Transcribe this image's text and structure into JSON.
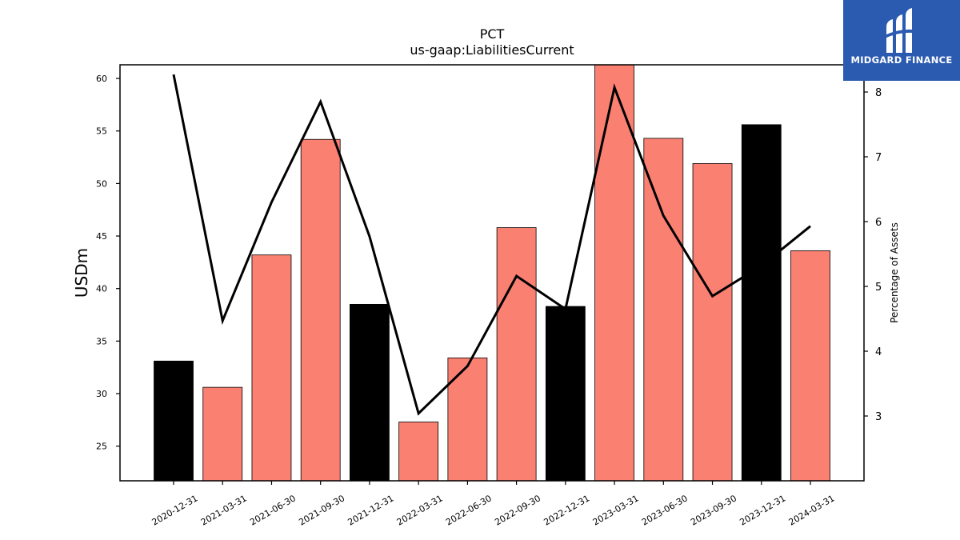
{
  "chart_data": {
    "type": "bar",
    "title": "PCT",
    "subtitle": "us-gaap:LiabilitiesCurrent",
    "ylabel": "USDm",
    "ylabel_right": "Percentage of Assets",
    "categories": [
      "2020-12-31",
      "2021-03-31",
      "2021-06-30",
      "2021-09-30",
      "2021-12-31",
      "2022-03-31",
      "2022-06-30",
      "2022-09-30",
      "2022-12-31",
      "2023-03-31",
      "2023-06-30",
      "2023-09-30",
      "2023-12-31",
      "2024-03-31"
    ],
    "series": [
      {
        "type": "bar",
        "values": [
          33.1,
          30.6,
          43.2,
          54.2,
          38.5,
          27.3,
          33.4,
          45.8,
          38.3,
          61.5,
          54.3,
          51.9,
          55.6,
          43.6
        ],
        "colors": [
          "#000000",
          "#fa8072",
          "#fa8072",
          "#fa8072",
          "#000000",
          "#fa8072",
          "#fa8072",
          "#fa8072",
          "#000000",
          "#fa8072",
          "#fa8072",
          "#fa8072",
          "#000000",
          "#fa8072"
        ]
      },
      {
        "type": "line",
        "axis": "right",
        "values": [
          8.27,
          4.47,
          6.3,
          7.85,
          5.77,
          3.04,
          3.77,
          5.16,
          4.65,
          8.07,
          6.09,
          4.85,
          5.32,
          5.93
        ],
        "color": "#000000"
      }
    ],
    "ylim": [
      21.7,
      61.3
    ],
    "y_right_lim": [
      2.0,
      8.42
    ],
    "yticks": [
      25,
      30,
      35,
      40,
      45,
      50,
      55,
      60
    ],
    "yticks_right": [
      3,
      4,
      5,
      6,
      7,
      8
    ],
    "grid": false
  },
  "logo": {
    "text": "MIDGARD FINANCE",
    "icon": "midgard-logo-icon",
    "bg_color": "#2b5bb0"
  }
}
